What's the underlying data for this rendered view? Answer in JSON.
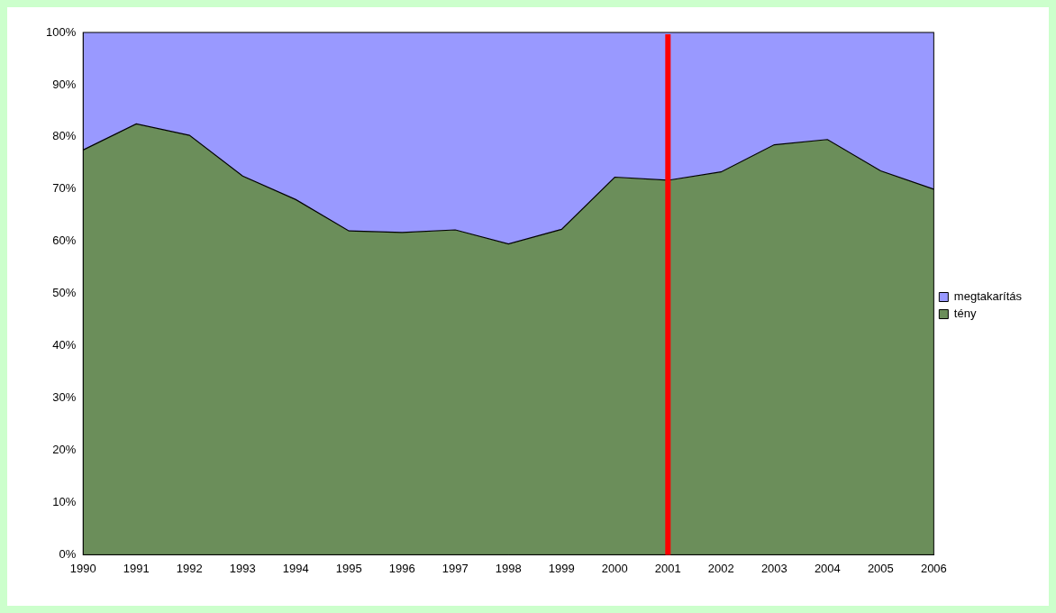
{
  "chart_data": {
    "type": "area",
    "stacked": true,
    "grid": false,
    "legend": "right",
    "categories": [
      "1990",
      "1991",
      "1992",
      "1993",
      "1994",
      "1995",
      "1996",
      "1997",
      "1998",
      "1999",
      "2000",
      "2001",
      "2002",
      "2003",
      "2004",
      "2005",
      "2006"
    ],
    "series": [
      {
        "name": "tény",
        "color": "#6b8e5a",
        "values": [
          77.5,
          82.5,
          80.3,
          72.5,
          68,
          62,
          61.7,
          62.2,
          59.5,
          62.3,
          72.3,
          71.7,
          73.3,
          78.5,
          79.5,
          73.5,
          70
        ]
      },
      {
        "name": "megtakarítás",
        "color": "#9999ff",
        "values": [
          22.5,
          17.5,
          19.7,
          27.5,
          32,
          38,
          38.3,
          37.8,
          40.5,
          37.7,
          27.7,
          28.3,
          26.7,
          21.5,
          20.5,
          26.5,
          30
        ]
      }
    ],
    "ylim": [
      0,
      100
    ],
    "yticks": [
      {
        "value": 0,
        "label": "0%"
      },
      {
        "value": 10,
        "label": "10%"
      },
      {
        "value": 20,
        "label": "20%"
      },
      {
        "value": 30,
        "label": "30%"
      },
      {
        "value": 40,
        "label": "40%"
      },
      {
        "value": 50,
        "label": "50%"
      },
      {
        "value": 60,
        "label": "60%"
      },
      {
        "value": 70,
        "label": "70%"
      },
      {
        "value": 80,
        "label": "80%"
      },
      {
        "value": 90,
        "label": "90%"
      },
      {
        "value": 100,
        "label": "100%"
      }
    ],
    "reference_line": {
      "x": "2001",
      "color": "#ff0000"
    }
  }
}
